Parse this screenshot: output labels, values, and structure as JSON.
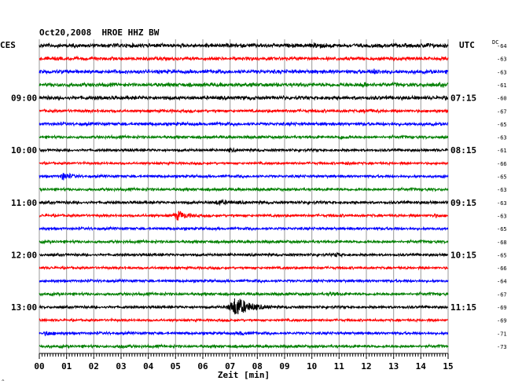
{
  "header": {
    "title": "Oct20,2008  HROE HHZ BW",
    "left_timezone": "CES",
    "right_timezone": "UTC",
    "dc_label": "DC"
  },
  "footer": {
    "xlabel": "Zeit [min]",
    "corner_mark": "^"
  },
  "chart_data": {
    "type": "line",
    "title": "Oct20,2008  HROE HHZ BW",
    "xlabel": "Zeit [min]",
    "ylabel": "",
    "xlim": [
      0,
      15
    ],
    "x_ticks": [
      "00",
      "01",
      "02",
      "03",
      "04",
      "05",
      "06",
      "07",
      "08",
      "09",
      "10",
      "11",
      "12",
      "13",
      "14",
      "15"
    ],
    "grid": true,
    "color_cycle": [
      "#000000",
      "#ff0000",
      "#0000ff",
      "#007f00"
    ],
    "left_hour_labels": [
      {
        "row": 4,
        "text": "09:00"
      },
      {
        "row": 8,
        "text": "10:00"
      },
      {
        "row": 12,
        "text": "11:00"
      },
      {
        "row": 16,
        "text": "12:00"
      },
      {
        "row": 20,
        "text": "13:00"
      }
    ],
    "right_hour_labels": [
      {
        "row": 4,
        "text": "07:15"
      },
      {
        "row": 8,
        "text": "08:15"
      },
      {
        "row": 12,
        "text": "09:15"
      },
      {
        "row": 16,
        "text": "10:15"
      },
      {
        "row": 20,
        "text": "11:15"
      }
    ],
    "dc_offsets": [
      "-64",
      "-63",
      "-63",
      "-61",
      "-60",
      "-67",
      "-65",
      "-63",
      "-61",
      "-66",
      "-65",
      "-63",
      "-63",
      "-63",
      "-65",
      "-68",
      "-65",
      "-66",
      "-64",
      "-67",
      "-69",
      "-69",
      "-71",
      "-73"
    ],
    "traces": [
      {
        "row": 0,
        "color": "#000000",
        "amplitude": 3.0,
        "events": [
          {
            "minute": 10.2,
            "amp": 2.0,
            "dur": 0.4
          },
          {
            "minute": 14.2,
            "amp": 1.5,
            "dur": 0.3
          }
        ]
      },
      {
        "row": 1,
        "color": "#ff0000",
        "amplitude": 2.6,
        "events": []
      },
      {
        "row": 2,
        "color": "#0000ff",
        "amplitude": 2.8,
        "events": [
          {
            "minute": 12.3,
            "amp": 2.0,
            "dur": 0.4
          }
        ]
      },
      {
        "row": 3,
        "color": "#007f00",
        "amplitude": 3.0,
        "events": [
          {
            "minute": 11.9,
            "amp": 1.5,
            "dur": 0.4
          }
        ]
      },
      {
        "row": 4,
        "color": "#000000",
        "amplitude": 2.8,
        "events": []
      },
      {
        "row": 5,
        "color": "#ff0000",
        "amplitude": 2.2,
        "events": [
          {
            "minute": 12.0,
            "amp": 1.5,
            "dur": 0.4
          }
        ]
      },
      {
        "row": 6,
        "color": "#0000ff",
        "amplitude": 2.4,
        "events": []
      },
      {
        "row": 7,
        "color": "#007f00",
        "amplitude": 2.2,
        "events": [
          {
            "minute": 11.1,
            "amp": 1.5,
            "dur": 0.3
          }
        ]
      },
      {
        "row": 8,
        "color": "#000000",
        "amplitude": 2.0,
        "events": [
          {
            "minute": 7.0,
            "amp": 1.3,
            "dur": 0.3
          }
        ]
      },
      {
        "row": 9,
        "color": "#ff0000",
        "amplitude": 1.8,
        "events": [
          {
            "minute": 11.3,
            "amp": 1.3,
            "dur": 0.3
          }
        ]
      },
      {
        "row": 10,
        "color": "#0000ff",
        "amplitude": 2.0,
        "events": [
          {
            "minute": 0.9,
            "amp": 4.0,
            "dur": 0.4
          }
        ]
      },
      {
        "row": 11,
        "color": "#007f00",
        "amplitude": 2.2,
        "events": []
      },
      {
        "row": 12,
        "color": "#000000",
        "amplitude": 2.2,
        "events": [
          {
            "minute": 6.6,
            "amp": 2.5,
            "dur": 0.5
          }
        ]
      },
      {
        "row": 13,
        "color": "#ff0000",
        "amplitude": 2.0,
        "events": [
          {
            "minute": 5.1,
            "amp": 5.0,
            "dur": 0.5
          },
          {
            "minute": 14.5,
            "amp": 1.3,
            "dur": 0.3
          }
        ]
      },
      {
        "row": 14,
        "color": "#0000ff",
        "amplitude": 2.0,
        "events": []
      },
      {
        "row": 15,
        "color": "#007f00",
        "amplitude": 2.2,
        "events": []
      },
      {
        "row": 16,
        "color": "#000000",
        "amplitude": 2.0,
        "events": [
          {
            "minute": 10.9,
            "amp": 2.0,
            "dur": 0.3
          }
        ]
      },
      {
        "row": 17,
        "color": "#ff0000",
        "amplitude": 1.9,
        "events": []
      },
      {
        "row": 18,
        "color": "#0000ff",
        "amplitude": 2.0,
        "events": []
      },
      {
        "row": 19,
        "color": "#007f00",
        "amplitude": 2.2,
        "events": [
          {
            "minute": 10.7,
            "amp": 1.3,
            "dur": 0.3
          }
        ]
      },
      {
        "row": 20,
        "color": "#000000",
        "amplitude": 2.0,
        "events": [
          {
            "minute": 7.25,
            "amp": 12.0,
            "dur": 0.8
          }
        ]
      },
      {
        "row": 21,
        "color": "#ff0000",
        "amplitude": 1.8,
        "events": []
      },
      {
        "row": 22,
        "color": "#0000ff",
        "amplitude": 2.0,
        "events": [
          {
            "minute": 0.3,
            "amp": 2.0,
            "dur": 0.4
          },
          {
            "minute": 7.4,
            "amp": 1.5,
            "dur": 0.4
          }
        ]
      },
      {
        "row": 23,
        "color": "#007f00",
        "amplitude": 2.2,
        "events": [
          {
            "minute": 3.0,
            "amp": 1.4,
            "dur": 0.3
          }
        ]
      }
    ]
  }
}
